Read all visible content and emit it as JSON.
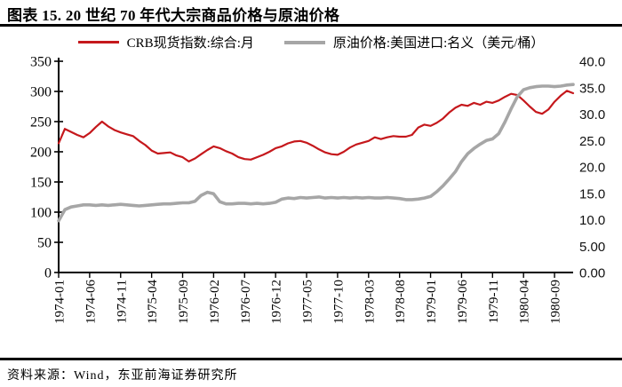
{
  "header": {
    "title": "图表 15. 20 世纪 70 年代大宗商品价格与原油价格"
  },
  "footer": {
    "source": "资料来源：Wind，东亚前海证券研究所"
  },
  "chart_data": {
    "type": "line",
    "title": "图表 15. 20 世纪 70 年代大宗商品价格与原油价格",
    "grid": false,
    "legend_position": "top-center",
    "legend": [
      {
        "label": "CRB现货指数:综合:月",
        "color": "#C5181C"
      },
      {
        "label": "原油价格:美国进口:名义（美元/桶）",
        "color": "#A6A6A6"
      }
    ],
    "left_axis": {
      "range": [
        0,
        350
      ],
      "tick_labels": [
        "0",
        "50",
        "100",
        "150",
        "200",
        "250",
        "300",
        "350"
      ]
    },
    "right_axis": {
      "range": [
        0,
        40
      ],
      "tick_labels": [
        "0.00",
        "5.00",
        "10.0",
        "15.0",
        "20.0",
        "25.0",
        "30.0",
        "35.0",
        "40.0"
      ]
    },
    "x_tick_labels": [
      "1974-01",
      "1974-06",
      "1974-11",
      "1975-04",
      "1975-09",
      "1976-02",
      "1976-07",
      "1976-12",
      "1977-05",
      "1977-10",
      "1978-03",
      "1978-08",
      "1979-01",
      "1979-06",
      "1979-11",
      "1980-04",
      "1980-09"
    ],
    "x": [
      "1974-01",
      "1974-02",
      "1974-03",
      "1974-04",
      "1974-05",
      "1974-06",
      "1974-07",
      "1974-08",
      "1974-09",
      "1974-10",
      "1974-11",
      "1974-12",
      "1975-01",
      "1975-02",
      "1975-03",
      "1975-04",
      "1975-05",
      "1975-06",
      "1975-07",
      "1975-08",
      "1975-09",
      "1975-10",
      "1975-11",
      "1975-12",
      "1976-01",
      "1976-02",
      "1976-03",
      "1976-04",
      "1976-05",
      "1976-06",
      "1976-07",
      "1976-08",
      "1976-09",
      "1976-10",
      "1976-11",
      "1976-12",
      "1977-01",
      "1977-02",
      "1977-03",
      "1977-04",
      "1977-05",
      "1977-06",
      "1977-07",
      "1977-08",
      "1977-09",
      "1977-10",
      "1977-11",
      "1977-12",
      "1978-01",
      "1978-02",
      "1978-03",
      "1978-04",
      "1978-05",
      "1978-06",
      "1978-07",
      "1978-08",
      "1978-09",
      "1978-10",
      "1978-11",
      "1978-12",
      "1979-01",
      "1979-02",
      "1979-03",
      "1979-04",
      "1979-05",
      "1979-06",
      "1979-07",
      "1979-08",
      "1979-09",
      "1979-10",
      "1979-11",
      "1979-12",
      "1980-01",
      "1980-02",
      "1980-03",
      "1980-04",
      "1980-05",
      "1980-06",
      "1980-07",
      "1980-08",
      "1980-09",
      "1980-10",
      "1980-11",
      "1980-12"
    ],
    "series": [
      {
        "name": "CRB现货指数:综合:月",
        "axis": "left",
        "color": "#C5181C",
        "values": [
          214,
          238,
          233,
          228,
          224,
          231,
          241,
          250,
          242,
          236,
          232,
          229,
          226,
          218,
          211,
          202,
          197,
          198,
          199,
          194,
          191,
          184,
          189,
          196,
          203,
          209,
          206,
          201,
          197,
          191,
          188,
          187,
          191,
          195,
          200,
          206,
          209,
          214,
          217,
          218,
          215,
          210,
          204,
          199,
          196,
          195,
          200,
          207,
          212,
          215,
          218,
          224,
          221,
          224,
          226,
          225,
          225,
          228,
          240,
          245,
          243,
          248,
          255,
          265,
          273,
          278,
          276,
          281,
          278,
          283,
          281,
          285,
          291,
          296,
          294,
          285,
          275,
          266,
          263,
          270,
          283,
          293,
          301,
          297
        ]
      },
      {
        "name": "原油价格:美国进口:名义（美元/桶）",
        "axis": "right",
        "color": "#A6A6A6",
        "values": [
          9.8,
          11.9,
          12.4,
          12.6,
          12.8,
          12.8,
          12.7,
          12.8,
          12.7,
          12.8,
          12.9,
          12.8,
          12.7,
          12.6,
          12.7,
          12.8,
          12.9,
          13.0,
          13.0,
          13.1,
          13.2,
          13.2,
          13.5,
          14.6,
          15.2,
          14.9,
          13.4,
          13.0,
          13.0,
          13.1,
          13.1,
          13.0,
          13.1,
          13.0,
          13.1,
          13.3,
          13.9,
          14.1,
          14.0,
          14.2,
          14.1,
          14.2,
          14.3,
          14.1,
          14.2,
          14.1,
          14.2,
          14.1,
          14.2,
          14.1,
          14.2,
          14.1,
          14.1,
          14.2,
          14.1,
          14.0,
          13.8,
          13.8,
          13.9,
          14.1,
          14.4,
          15.3,
          16.4,
          17.7,
          19.1,
          21.0,
          22.5,
          23.5,
          24.3,
          25.0,
          25.3,
          26.3,
          28.5,
          31.0,
          33.3,
          34.6,
          35.0,
          35.2,
          35.3,
          35.3,
          35.2,
          35.3,
          35.5,
          35.6
        ]
      }
    ]
  }
}
